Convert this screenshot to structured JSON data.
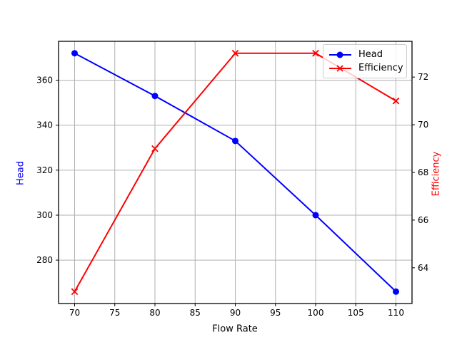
{
  "figure": {
    "background": "#ffffff",
    "title": ""
  },
  "chart_data": {
    "type": "line",
    "x": [
      70,
      80,
      90,
      100,
      110
    ],
    "series": [
      {
        "name": "Head",
        "axis": "left",
        "color": "#0000ff",
        "marker": "circle",
        "values": [
          372,
          353,
          333,
          300,
          266
        ]
      },
      {
        "name": "Efficiency",
        "axis": "right",
        "color": "#ff0000",
        "marker": "x",
        "values": [
          63,
          69,
          73,
          73,
          71
        ]
      }
    ],
    "title": "",
    "xlabel": "Flow Rate",
    "ylabel_left": "Head",
    "ylabel_right": "Efficiency",
    "ylabel_left_color": "#0000ff",
    "ylabel_right_color": "#ff0000",
    "xlim": [
      68,
      112
    ],
    "ylim_left": [
      260.7,
      377.3
    ],
    "ylim_right": [
      62.5,
      73.5
    ],
    "xticks": [
      70,
      75,
      80,
      85,
      90,
      95,
      100,
      105,
      110
    ],
    "yticks_left": [
      280,
      300,
      320,
      340,
      360
    ],
    "yticks_right": [
      64,
      66,
      68,
      70,
      72
    ],
    "grid": true,
    "grid_color": "#b0b0b0",
    "spine_color": "#000000",
    "tick_label_color": "#000000",
    "legend_position": "upper right"
  }
}
